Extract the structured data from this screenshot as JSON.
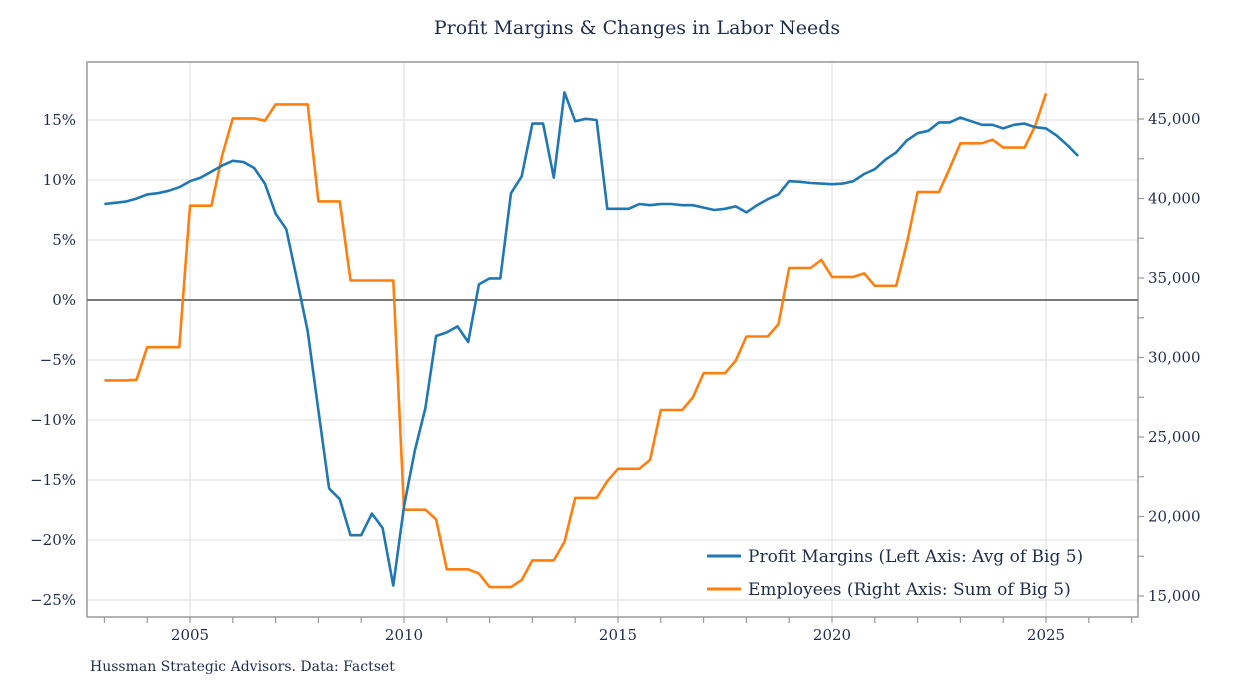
{
  "chart_data": {
    "type": "line",
    "title": "Profit Margins & Changes in Labor Needs",
    "footer": "Hussman Strategic Advisors. Data: Factset",
    "xlabel": "",
    "x_ticks": [
      "2005",
      "2010",
      "2015",
      "2020",
      "2025"
    ],
    "xlim": [
      2002.6,
      2027.2
    ],
    "left_axis": {
      "ylim": [
        -26.5,
        19.5
      ],
      "ticks": [
        15,
        10,
        5,
        0,
        -5,
        -10,
        -15,
        -20,
        -25
      ],
      "tick_labels": [
        "15%",
        "10%",
        "5%",
        "0%",
        "−5%",
        "−10%",
        "−15%",
        "−20%",
        "−25%"
      ]
    },
    "right_axis": {
      "ylim": [
        14000,
        48500
      ],
      "ticks": [
        45000,
        40000,
        35000,
        30000,
        25000,
        20000,
        15000
      ],
      "tick_labels": [
        "45,000",
        "40,000",
        "35,000",
        "30,000",
        "25,000",
        "20,000",
        "15,000"
      ]
    },
    "grid": true,
    "legend_position": "bottom-right",
    "series": [
      {
        "name": "Profit Margins (Left Axis: Avg of Big 5)",
        "axis": "left",
        "color": "#1f77b4",
        "x_start": 2003.0,
        "x_step": 0.25,
        "values": [
          8.0,
          8.1,
          8.2,
          8.45,
          8.8,
          8.9,
          9.1,
          9.4,
          9.9,
          10.2,
          10.7,
          11.2,
          11.6,
          11.5,
          11.0,
          9.7,
          7.2,
          5.9,
          1.7,
          -2.6,
          -9.2,
          -15.7,
          -16.6,
          -19.6,
          -19.6,
          -17.8,
          -19.0,
          -23.8,
          -17.2,
          -12.6,
          -9.0,
          -3.0,
          -2.7,
          -2.2,
          -3.5,
          1.3,
          1.8,
          1.8,
          8.9,
          10.3,
          14.7,
          14.7,
          10.2,
          17.3,
          14.9,
          15.1,
          15.0,
          7.6,
          7.6,
          7.6,
          8.0,
          7.9,
          8.0,
          8.0,
          7.9,
          7.9,
          7.7,
          7.5,
          7.6,
          7.8,
          7.3,
          7.9,
          8.4,
          8.8,
          9.9,
          9.85,
          9.75,
          9.7,
          9.65,
          9.7,
          9.9,
          10.5,
          10.9,
          11.7,
          12.3,
          13.3,
          13.9,
          14.1,
          14.8,
          14.8,
          15.2,
          14.9,
          14.6,
          14.6,
          14.3,
          14.6,
          14.7,
          14.4,
          14.3,
          13.7,
          12.9,
          12.0
        ]
      },
      {
        "name": "Employees (Right Axis: Sum of Big 5)",
        "axis": "right",
        "color": "#ff7f0e",
        "x_start": 2003.0,
        "x_step": 0.25,
        "values": [
          28560,
          28560,
          28560,
          28600,
          30650,
          30650,
          30650,
          30650,
          39550,
          39550,
          39550,
          42690,
          45040,
          45040,
          45040,
          44890,
          45920,
          45920,
          45920,
          45920,
          39820,
          39820,
          39820,
          34840,
          34840,
          34840,
          34840,
          34840,
          20430,
          20430,
          20430,
          19820,
          16680,
          16680,
          16680,
          16410,
          15560,
          15560,
          15560,
          16010,
          17240,
          17240,
          17240,
          18410,
          21170,
          21170,
          21170,
          22220,
          23000,
          23000,
          23000,
          23560,
          26700,
          26700,
          26700,
          27490,
          29010,
          29010,
          29010,
          29800,
          31320,
          31320,
          31320,
          32100,
          35630,
          35630,
          35630,
          36140,
          35070,
          35070,
          35070,
          35290,
          34510,
          34510,
          34510,
          37200,
          40400,
          40400,
          40400,
          41900,
          43470,
          43470,
          43470,
          43700,
          43200,
          43200,
          43200,
          44590,
          46610
        ]
      }
    ]
  }
}
